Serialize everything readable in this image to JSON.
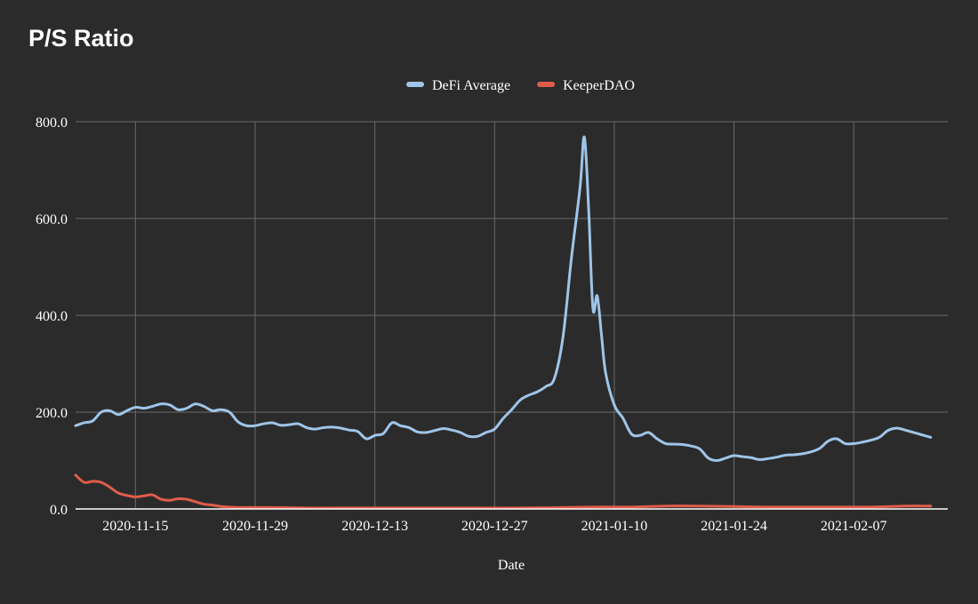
{
  "chart_data": {
    "type": "line",
    "title": "P/S Ratio",
    "xlabel": "Date",
    "ylabel": "",
    "ylim": [
      0,
      800
    ],
    "xlim": [
      "2020-11-08",
      "2021-02-18"
    ],
    "yticks": [
      0,
      200,
      400,
      600,
      800
    ],
    "ytick_labels": [
      "0.0",
      "200.0",
      "400.0",
      "600.0",
      "800.0"
    ],
    "xticks": [
      "2020-11-15",
      "2020-11-29",
      "2020-12-13",
      "2020-12-27",
      "2021-01-10",
      "2021-01-24",
      "2021-02-07"
    ],
    "grid": true,
    "legend_position": "top-center",
    "series": [
      {
        "name": "DeFi Average",
        "color": "#9fc5e8",
        "points": [
          [
            "2020-11-08",
            172
          ],
          [
            "2020-11-09",
            178
          ],
          [
            "2020-11-10",
            182
          ],
          [
            "2020-11-11",
            200
          ],
          [
            "2020-11-12",
            203
          ],
          [
            "2020-11-13",
            195
          ],
          [
            "2020-11-14",
            203
          ],
          [
            "2020-11-15",
            210
          ],
          [
            "2020-11-16",
            208
          ],
          [
            "2020-11-17",
            212
          ],
          [
            "2020-11-18",
            217
          ],
          [
            "2020-11-19",
            215
          ],
          [
            "2020-11-20",
            205
          ],
          [
            "2020-11-21",
            208
          ],
          [
            "2020-11-22",
            217
          ],
          [
            "2020-11-23",
            212
          ],
          [
            "2020-11-24",
            203
          ],
          [
            "2020-11-25",
            205
          ],
          [
            "2020-11-26",
            200
          ],
          [
            "2020-11-27",
            180
          ],
          [
            "2020-11-28",
            172
          ],
          [
            "2020-11-29",
            172
          ],
          [
            "2020-11-30",
            176
          ],
          [
            "2020-12-01",
            178
          ],
          [
            "2020-12-02",
            173
          ],
          [
            "2020-12-03",
            174
          ],
          [
            "2020-12-04",
            176
          ],
          [
            "2020-12-05",
            168
          ],
          [
            "2020-12-06",
            165
          ],
          [
            "2020-12-07",
            168
          ],
          [
            "2020-12-08",
            169
          ],
          [
            "2020-12-09",
            167
          ],
          [
            "2020-12-10",
            163
          ],
          [
            "2020-12-11",
            160
          ],
          [
            "2020-12-12",
            145
          ],
          [
            "2020-12-13",
            152
          ],
          [
            "2020-12-14",
            156
          ],
          [
            "2020-12-15",
            178
          ],
          [
            "2020-12-16",
            172
          ],
          [
            "2020-12-17",
            168
          ],
          [
            "2020-12-18",
            159
          ],
          [
            "2020-12-19",
            158
          ],
          [
            "2020-12-20",
            162
          ],
          [
            "2020-12-21",
            166
          ],
          [
            "2020-12-22",
            163
          ],
          [
            "2020-12-23",
            158
          ],
          [
            "2020-12-24",
            150
          ],
          [
            "2020-12-25",
            150
          ],
          [
            "2020-12-26",
            158
          ],
          [
            "2020-12-27",
            165
          ],
          [
            "2020-12-28",
            187
          ],
          [
            "2020-12-29",
            205
          ],
          [
            "2020-12-30",
            225
          ],
          [
            "2020-12-31",
            235
          ],
          [
            "2021-01-01",
            242
          ],
          [
            "2021-01-02",
            253
          ],
          [
            "2021-01-03",
            270
          ],
          [
            "2021-01-04",
            355
          ],
          [
            "2021-01-05",
            520
          ],
          [
            "2021-01-06",
            665
          ],
          [
            "2021-01-06T12",
            768
          ],
          [
            "2021-01-07",
            620
          ],
          [
            "2021-01-07T12",
            415
          ],
          [
            "2021-01-08",
            440
          ],
          [
            "2021-01-08T12",
            360
          ],
          [
            "2021-01-09",
            280
          ],
          [
            "2021-01-10",
            215
          ],
          [
            "2021-01-11",
            188
          ],
          [
            "2021-01-12",
            155
          ],
          [
            "2021-01-13",
            152
          ],
          [
            "2021-01-14",
            158
          ],
          [
            "2021-01-15",
            145
          ],
          [
            "2021-01-16",
            135
          ],
          [
            "2021-01-17",
            134
          ],
          [
            "2021-01-18",
            133
          ],
          [
            "2021-01-19",
            130
          ],
          [
            "2021-01-20",
            124
          ],
          [
            "2021-01-21",
            105
          ],
          [
            "2021-01-22",
            100
          ],
          [
            "2021-01-23",
            105
          ],
          [
            "2021-01-24",
            110
          ],
          [
            "2021-01-25",
            108
          ],
          [
            "2021-01-26",
            106
          ],
          [
            "2021-01-27",
            102
          ],
          [
            "2021-01-28",
            104
          ],
          [
            "2021-01-29",
            107
          ],
          [
            "2021-01-30",
            111
          ],
          [
            "2021-01-31",
            112
          ],
          [
            "2021-02-01",
            114
          ],
          [
            "2021-02-02",
            118
          ],
          [
            "2021-02-03",
            125
          ],
          [
            "2021-02-04",
            140
          ],
          [
            "2021-02-05",
            145
          ],
          [
            "2021-02-06",
            135
          ],
          [
            "2021-02-07",
            135
          ],
          [
            "2021-02-08",
            138
          ],
          [
            "2021-02-09",
            142
          ],
          [
            "2021-02-10",
            148
          ],
          [
            "2021-02-11",
            162
          ],
          [
            "2021-02-12",
            167
          ],
          [
            "2021-02-13",
            163
          ],
          [
            "2021-02-14",
            158
          ],
          [
            "2021-02-15",
            153
          ],
          [
            "2021-02-16",
            148
          ]
        ]
      },
      {
        "name": "KeeperDAO",
        "color": "#e05c4b",
        "points": [
          [
            "2020-11-08",
            70
          ],
          [
            "2020-11-09",
            55
          ],
          [
            "2020-11-10",
            57
          ],
          [
            "2020-11-11",
            55
          ],
          [
            "2020-11-12",
            45
          ],
          [
            "2020-11-13",
            33
          ],
          [
            "2020-11-14",
            28
          ],
          [
            "2020-11-15",
            25
          ],
          [
            "2020-11-16",
            27
          ],
          [
            "2020-11-17",
            29
          ],
          [
            "2020-11-18",
            20
          ],
          [
            "2020-11-19",
            18
          ],
          [
            "2020-11-20",
            21
          ],
          [
            "2020-11-21",
            20
          ],
          [
            "2020-11-22",
            15
          ],
          [
            "2020-11-23",
            10
          ],
          [
            "2020-11-24",
            8
          ],
          [
            "2020-11-25",
            5
          ],
          [
            "2020-11-26",
            4
          ],
          [
            "2020-11-27",
            3
          ],
          [
            "2020-11-29",
            3
          ],
          [
            "2020-12-01",
            3
          ],
          [
            "2020-12-05",
            2
          ],
          [
            "2020-12-10",
            2
          ],
          [
            "2020-12-15",
            2
          ],
          [
            "2020-12-20",
            2
          ],
          [
            "2020-12-25",
            2
          ],
          [
            "2020-12-30",
            2
          ],
          [
            "2021-01-04",
            3
          ],
          [
            "2021-01-08",
            4
          ],
          [
            "2021-01-12",
            4
          ],
          [
            "2021-01-16",
            6
          ],
          [
            "2021-01-20",
            6
          ],
          [
            "2021-01-24",
            5
          ],
          [
            "2021-01-28",
            4
          ],
          [
            "2021-02-01",
            4
          ],
          [
            "2021-02-05",
            4
          ],
          [
            "2021-02-09",
            4
          ],
          [
            "2021-02-13",
            6
          ],
          [
            "2021-02-16",
            6
          ]
        ]
      }
    ]
  }
}
